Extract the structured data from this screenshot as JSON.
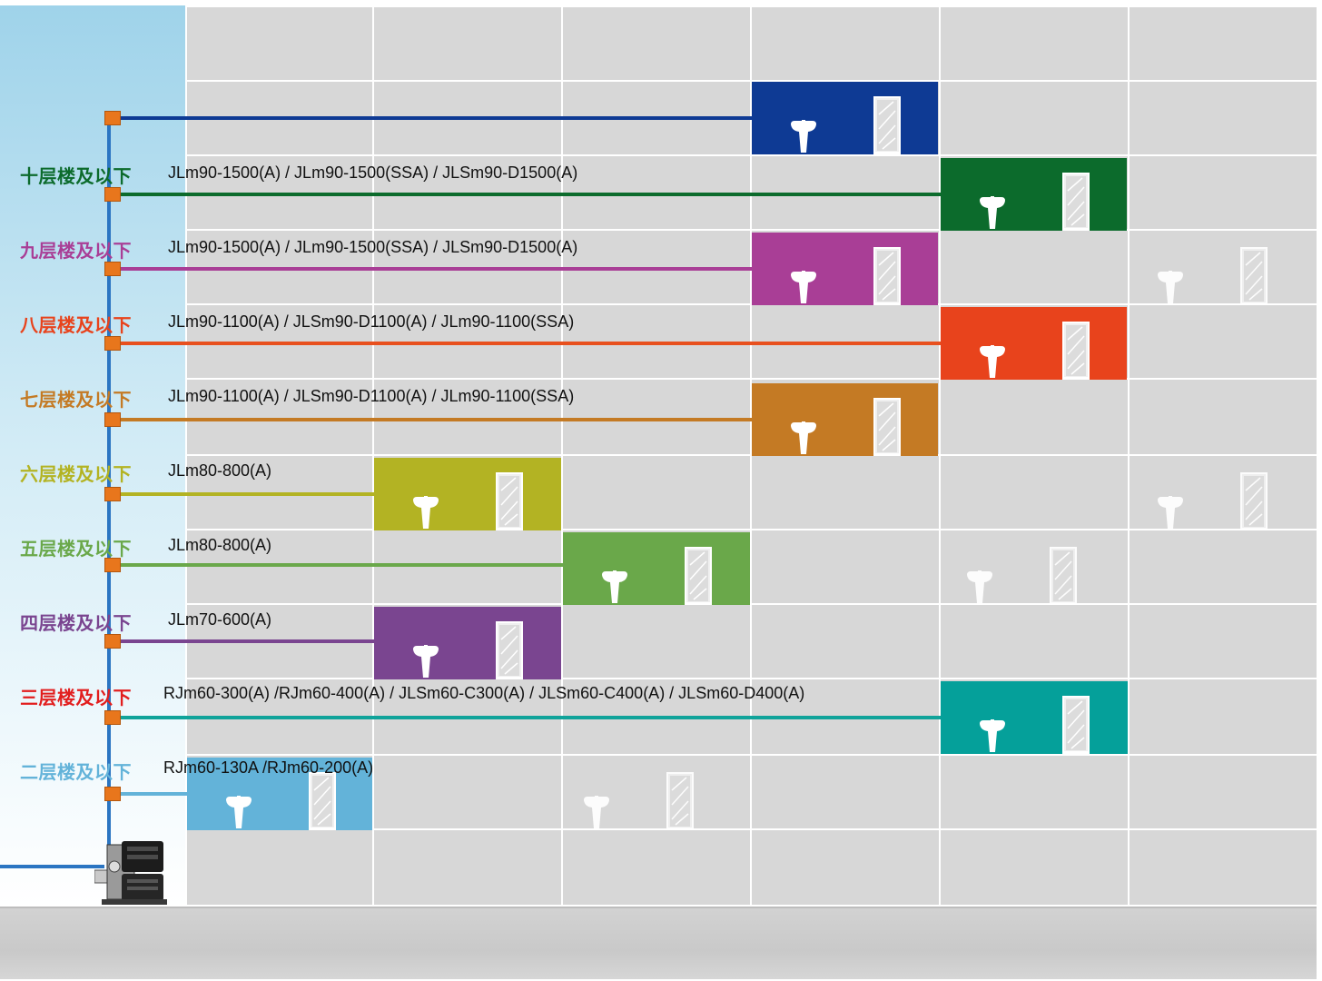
{
  "floors": [
    {
      "key": "10",
      "label": "十层楼及以下",
      "model": "JLm90-1500(A) / JLm90-1500(SSA) / JLSm90-D1500(A)",
      "color": "#0c6b2c"
    },
    {
      "key": "9",
      "label": "九层楼及以下",
      "model": "JLm90-1500(A) / JLm90-1500(SSA) / JLSm90-D1500(A)",
      "color": "#a93e96"
    },
    {
      "key": "8",
      "label": "八层楼及以下",
      "model": "JLm90-1100(A) / JLSm90-D1100(A) / JLm90-1100(SSA)",
      "color": "#e8431c"
    },
    {
      "key": "7",
      "label": "七层楼及以下",
      "model": "JLm90-1100(A) / JLSm90-D1100(A) / JLm90-1100(SSA)",
      "color": "#c47a24"
    },
    {
      "key": "6",
      "label": "六层楼及以下",
      "model": "JLm80-800(A)",
      "color": "#b3b323"
    },
    {
      "key": "5",
      "label": "五层楼及以下",
      "model": "JLm80-800(A)",
      "color": "#6aa84a"
    },
    {
      "key": "4",
      "label": "四层楼及以下",
      "model": "JLm70-600(A)",
      "color": "#7a4590"
    },
    {
      "key": "3",
      "label": "三层楼及以下",
      "model": "RJm60-300(A) /RJm60-400(A) / JLSm60-C300(A) / JLSm60-C400(A) / JLSm60-D400(A)",
      "color": "#e21e1e"
    },
    {
      "key": "2",
      "label": "二层楼及以下",
      "model": "RJm60-130A /RJm60-200(A)",
      "color": "#63b3d9"
    }
  ],
  "colors": {
    "top_floor": "#0e3a94",
    "riser": "#2b75c2",
    "elbow": "#e8761c",
    "pipe_8": "#e8501e",
    "pipe_3": "#10a39a",
    "bath_3": "#05a09a",
    "pipe_2": "#63b3d9",
    "wall": "#d7d7d7"
  },
  "icons": [
    "wash-basin-icon",
    "shower-door-icon",
    "booster-pump-icon"
  ]
}
